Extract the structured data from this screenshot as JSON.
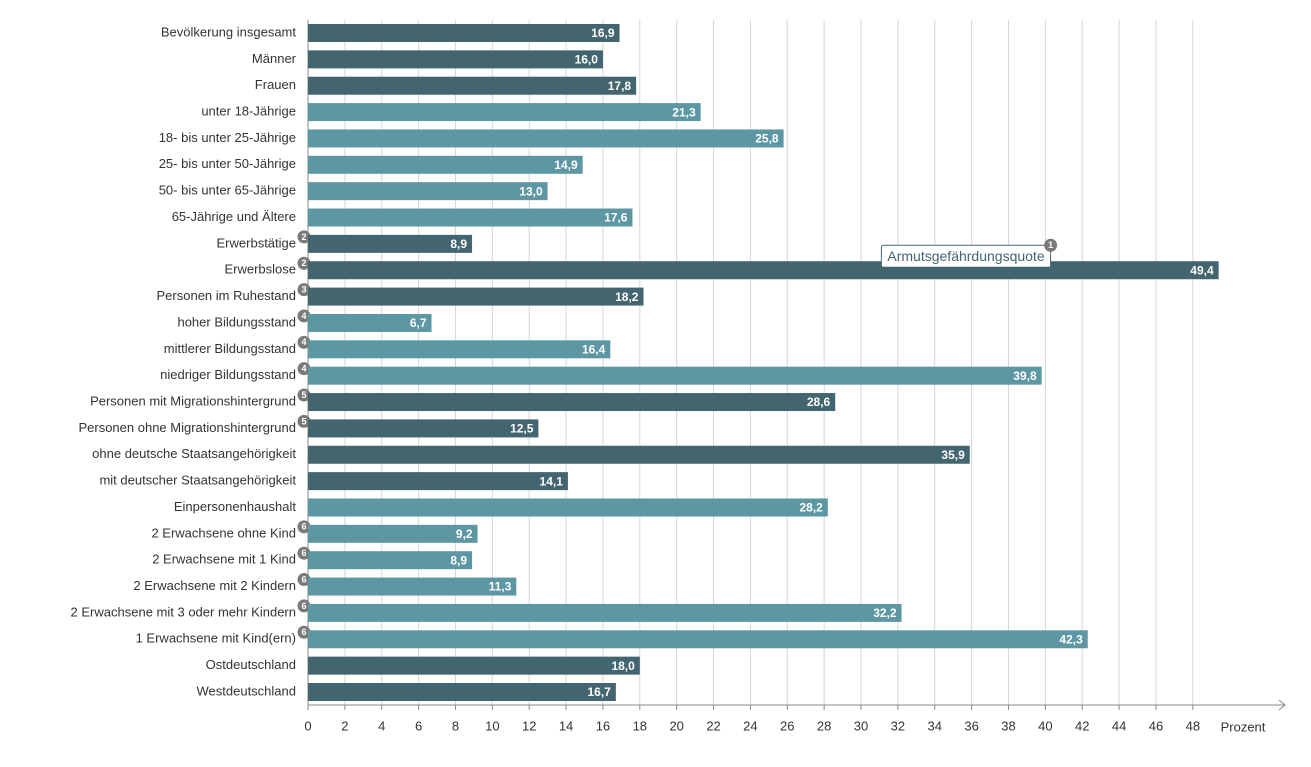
{
  "chart_data": {
    "type": "bar",
    "orientation": "horizontal",
    "categories": [
      "Bevölkerung insgesamt",
      "Männer",
      "Frauen",
      "unter 18-Jährige",
      "18- bis unter 25-Jährige",
      "25- bis unter 50-Jährige",
      "50- bis unter 65-Jährige",
      "65-Jährige und Ältere",
      "Erwerbstätige",
      "Erwerbslose",
      "Personen im Ruhestand",
      "hoher Bildungsstand",
      "mittlerer Bildungsstand",
      "niedriger Bildungsstand",
      "Personen mit Migrationshintergrund",
      "Personen ohne Migrationshintergrund",
      "ohne deutsche Staatsangehörigkeit",
      "mit deutscher Staatsangehörigkeit",
      "Einpersonenhaushalt",
      "2 Erwachsene ohne Kind",
      "2 Erwachsene mit 1 Kind",
      "2 Erwachsene mit 2 Kindern",
      "2 Erwachsene mit 3 oder mehr Kindern",
      "1 Erwachsene mit Kind(ern)",
      "Ostdeutschland",
      "Westdeutschland"
    ],
    "footnotes": [
      null,
      null,
      null,
      null,
      null,
      null,
      null,
      null,
      "2",
      "2",
      "3",
      "4",
      "4",
      "4",
      "5",
      "5",
      null,
      null,
      null,
      "6",
      "6",
      "6",
      "6",
      "6",
      null,
      null
    ],
    "values": [
      16.9,
      16.0,
      17.8,
      21.3,
      25.8,
      14.9,
      13.0,
      17.6,
      8.9,
      49.4,
      18.2,
      6.7,
      16.4,
      39.8,
      28.6,
      12.5,
      35.9,
      14.1,
      28.2,
      9.2,
      8.9,
      11.3,
      32.2,
      42.3,
      18.0,
      16.7
    ],
    "value_labels": [
      "16,9",
      "16,0",
      "17,8",
      "21,3",
      "25,8",
      "14,9",
      "13,0",
      "17,6",
      "8,9",
      "49,4",
      "18,2",
      "6,7",
      "16,4",
      "39,8",
      "28,6",
      "12,5",
      "35,9",
      "14,1",
      "28,2",
      "9,2",
      "8,9",
      "11,3",
      "32,2",
      "42,3",
      "18,0",
      "16,7"
    ],
    "colors": [
      "#436570",
      "#436570",
      "#436570",
      "#5e97a4",
      "#5e97a4",
      "#5e97a4",
      "#5e97a4",
      "#5e97a4",
      "#436570",
      "#436570",
      "#436570",
      "#5e97a4",
      "#5e97a4",
      "#5e97a4",
      "#436570",
      "#436570",
      "#436570",
      "#436570",
      "#5e97a4",
      "#5e97a4",
      "#5e97a4",
      "#5e97a4",
      "#5e97a4",
      "#5e97a4",
      "#436570",
      "#436570"
    ],
    "annotation": {
      "text": "Armutsgefährdungsquote",
      "footnote": "1"
    },
    "x_label": "Prozent",
    "xlim": [
      0,
      53
    ],
    "xticks": [
      0,
      2,
      4,
      6,
      8,
      10,
      12,
      14,
      16,
      18,
      20,
      22,
      24,
      26,
      28,
      30,
      32,
      34,
      36,
      38,
      40,
      42,
      44,
      46,
      48
    ],
    "grid": true
  }
}
